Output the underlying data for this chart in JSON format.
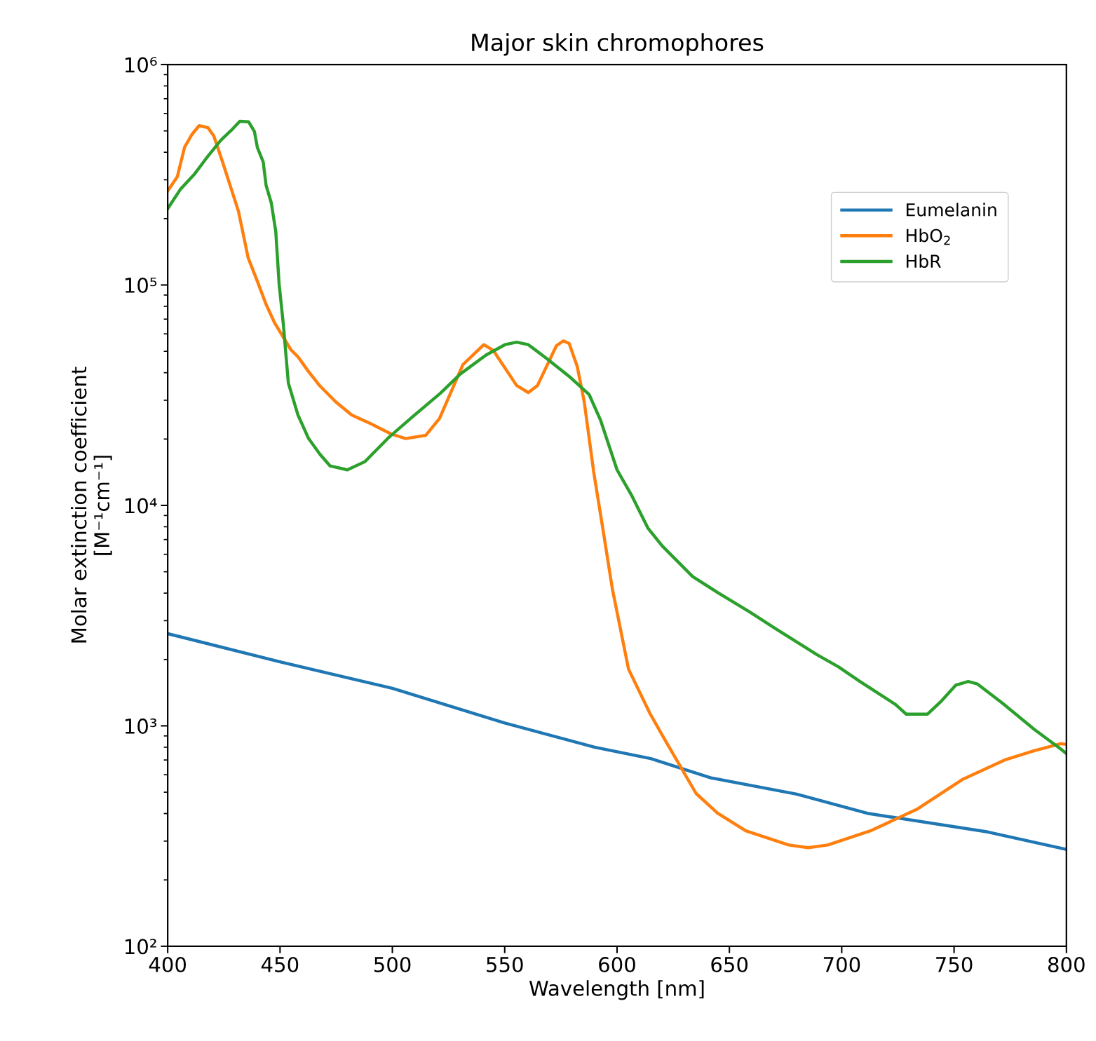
{
  "chart_data": {
    "type": "line",
    "title": "Major skin chromophores",
    "xlabel": "Wavelength [nm]",
    "ylabel": "Molar extinction coefficient\n[M⁻¹cm⁻¹]",
    "log": "y",
    "grid": false,
    "legend": "top right",
    "line_style": "solid",
    "marker": "none",
    "xlim": [
      400,
      800
    ],
    "xticks": [
      400,
      450,
      500,
      550,
      600,
      650,
      700,
      750,
      800
    ],
    "ylim": [
      100,
      1000000
    ],
    "yticks": [
      {
        "value": 100,
        "label": "10²"
      },
      {
        "value": 1000,
        "label": "10³"
      },
      {
        "value": 10000,
        "label": "10⁴"
      },
      {
        "value": 100000,
        "label": "10⁵"
      },
      {
        "value": 1000000,
        "label": "10⁶"
      }
    ],
    "series": [
      {
        "name": "Eumelanin",
        "color": "#1f77b4",
        "x": [
          400,
          450,
          500,
          550,
          590,
          615,
          642,
          680,
          712,
          765,
          800
        ],
        "values": [
          2620,
          1950,
          1480,
          1030,
          800,
          710,
          580,
          490,
          400,
          330,
          275
        ]
      },
      {
        "name": "HbO$_{2}$",
        "color": "#ff7f0e",
        "x": [
          400,
          404.3,
          407.5,
          410.8,
          414,
          417.9,
          420.5,
          424.4,
          431.5,
          435.8,
          439.9,
          443.8,
          447.7,
          454.8,
          458,
          462.6,
          467.7,
          474.8,
          481.9,
          490.3,
          499.4,
          505.9,
          514.9,
          521,
          531.4,
          540.7,
          544.9,
          555.3,
          560.5,
          564.6,
          573,
          576.1,
          578.7,
          582.3,
          585.4,
          589.6,
          593.8,
          597.9,
          605.1,
          614.6,
          620.9,
          635.2,
          644.7,
          657.3,
          676.4,
          685.1,
          693.8,
          712.8,
          733.4,
          754,
          773,
          785.7,
          797.5,
          800
        ],
        "values": [
          267000,
          310000,
          421000,
          482000,
          528000,
          517000,
          475000,
          362000,
          216000,
          133000,
          104000,
          81600,
          67000,
          50900,
          47200,
          40600,
          34900,
          29500,
          25700,
          23500,
          21100,
          20100,
          20800,
          24800,
          43500,
          53600,
          50500,
          35000,
          32500,
          35000,
          53000,
          55800,
          54300,
          42600,
          29500,
          14200,
          7700,
          4190,
          1810,
          1140,
          879,
          493,
          402,
          334,
          288,
          280,
          288,
          334,
          418,
          573,
          703,
          771,
          830,
          824
        ]
      },
      {
        "name": "HbR",
        "color": "#2ca02c",
        "x": [
          400,
          405.6,
          412.1,
          417.9,
          423.7,
          428.2,
          432.1,
          436,
          438.6,
          439.9,
          442.5,
          443.8,
          446.1,
          448.1,
          449.6,
          451.5,
          453.7,
          458,
          462.6,
          467.7,
          472.3,
          480,
          487.8,
          498.1,
          508.5,
          521.4,
          530.3,
          541.7,
          550.1,
          555.3,
          560.5,
          568.8,
          579.2,
          587.6,
          592.7,
          600,
          606.7,
          613.8,
          620.2,
          633.6,
          644.7,
          659,
          670.1,
          689.1,
          698.6,
          708.1,
          723.9,
          728.7,
          738.2,
          744.5,
          750.8,
          756.3,
          760.3,
          771.4,
          785.7,
          797.5,
          800
        ],
        "values": [
          222000,
          271000,
          320000,
          384000,
          454000,
          502000,
          553000,
          550000,
          497000,
          421000,
          362000,
          283000,
          236000,
          175000,
          101000,
          65900,
          35900,
          25700,
          20200,
          17100,
          15100,
          14500,
          15800,
          20200,
          25000,
          32300,
          39500,
          48100,
          53600,
          55000,
          53600,
          46300,
          38100,
          31800,
          24300,
          14500,
          11000,
          7870,
          6530,
          4760,
          4030,
          3290,
          2780,
          2100,
          1850,
          1590,
          1250,
          1130,
          1130,
          1300,
          1530,
          1590,
          1550,
          1270,
          964,
          785,
          748
        ]
      }
    ]
  }
}
